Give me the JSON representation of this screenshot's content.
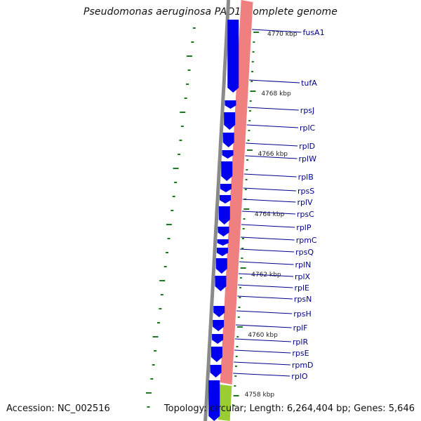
{
  "title": "Pseudomonas aeruginosa PAO1, complete genome",
  "accession": "Accession: NC_002516",
  "summary": "Topology: circular; Length: 6,264,404 bp; Genes: 5,646",
  "colors": {
    "cds": "#0000ee",
    "rrna_track": "#f08080",
    "green_track": "#9acd32",
    "backbone": "#8a8a8a",
    "tick": "#1e7a1e",
    "label": "#00008b"
  },
  "scale_labels": [
    "4770 kbp",
    "4768 kbp",
    "4766 kbp",
    "4764 kbp",
    "4762 kbp",
    "4760 kbp",
    "4758 kbp"
  ],
  "genes": [
    "fusA1",
    "tufA",
    "rpsJ",
    "rplC",
    "rplD",
    "rplW",
    "rplB",
    "rpsS",
    "rplV",
    "rpsC",
    "rplP",
    "rpmC",
    "rpsQ",
    "rplN",
    "rplX",
    "rplE",
    "rpsN",
    "rpsH",
    "rplF",
    "rplR",
    "rpsE",
    "rpmD",
    "rplO"
  ]
}
